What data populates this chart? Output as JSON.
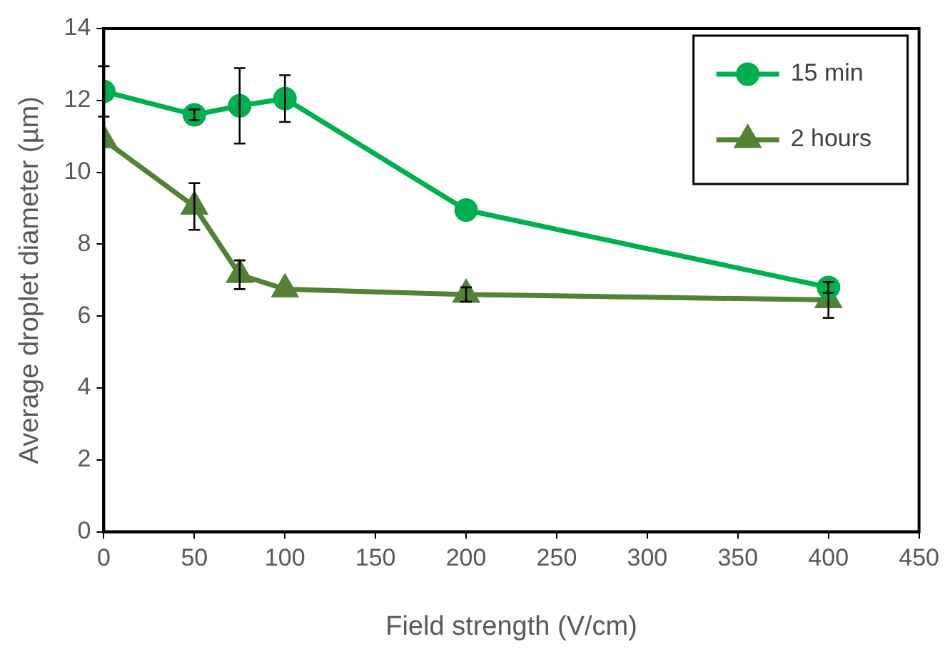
{
  "chart_data": {
    "type": "line",
    "xlabel": "Field strength (V/cm)",
    "ylabel": "Average droplet diameter (µm)",
    "xlim": [
      0,
      450
    ],
    "xticks": [
      0,
      50,
      100,
      150,
      200,
      250,
      300,
      350,
      400,
      450
    ],
    "ylim": [
      0,
      14
    ],
    "yticks": [
      0,
      2,
      4,
      6,
      8,
      10,
      12,
      14
    ],
    "grid": false,
    "legend": "top right",
    "line_style": "solid",
    "series": [
      {
        "name": "15 min",
        "color": "#00b050",
        "marker": "circle",
        "x": [
          0,
          50,
          75,
          100,
          200,
          400
        ],
        "values": [
          12.25,
          11.6,
          11.85,
          12.05,
          8.95,
          6.8
        ],
        "errors": [
          0.7,
          0.15,
          1.05,
          0.65,
          null,
          0.15
        ]
      },
      {
        "name": "2 hours",
        "color": "#538135",
        "marker": "triangle",
        "x": [
          0,
          50,
          75,
          100,
          200,
          400
        ],
        "values": [
          10.9,
          9.05,
          7.15,
          6.75,
          6.6,
          6.45
        ],
        "errors": [
          null,
          0.65,
          0.4,
          null,
          0.2,
          0.5
        ]
      }
    ]
  }
}
